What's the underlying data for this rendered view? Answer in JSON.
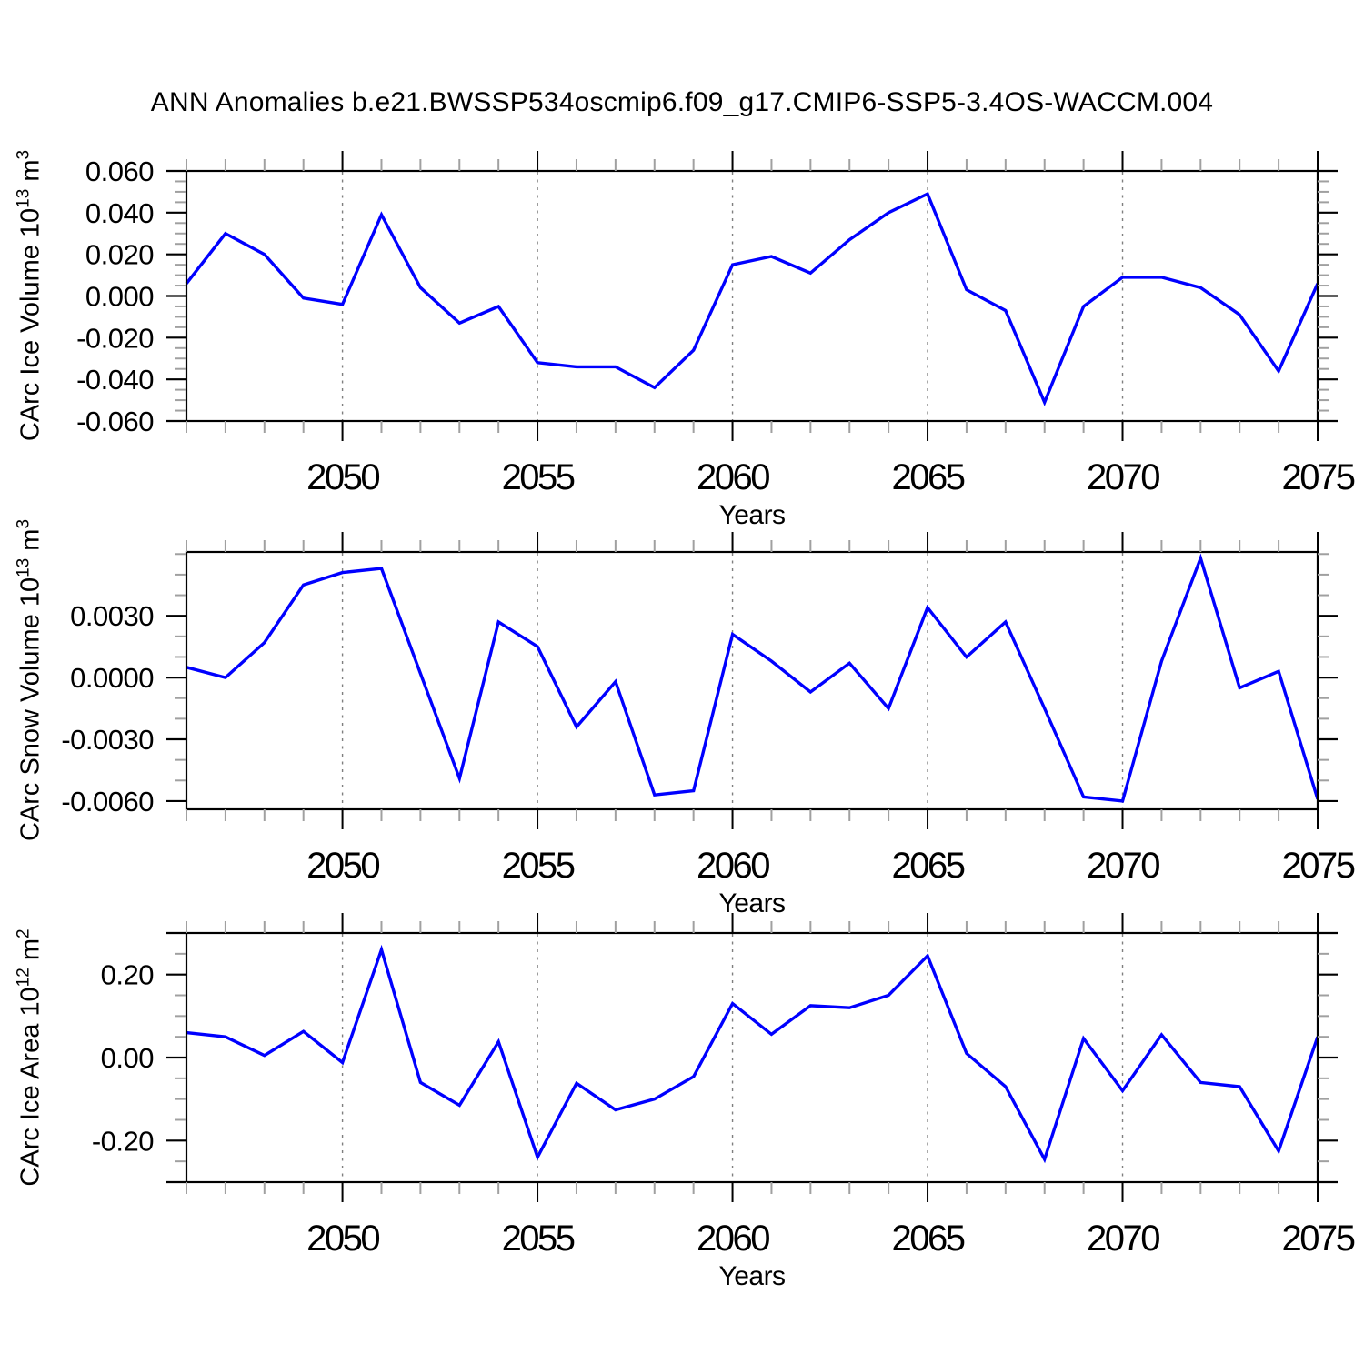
{
  "title": "ANN Anomalies b.e21.BWSSP534oscmip6.f09_g17.CMIP6-SSP5-3.4OS-WACCM.004",
  "chart_data": {
    "type": "line",
    "title": "ANN Anomalies b.e21.BWSSP534oscmip6.f09_g17.CMIP6-SSP5-3.4OS-WACCM.004",
    "x": [
      2046,
      2047,
      2048,
      2049,
      2050,
      2051,
      2052,
      2053,
      2054,
      2055,
      2056,
      2057,
      2058,
      2059,
      2060,
      2061,
      2062,
      2063,
      2064,
      2065,
      2066,
      2067,
      2068,
      2069,
      2070,
      2071,
      2072,
      2073,
      2074,
      2075
    ],
    "xlabel": "Years",
    "xlim": [
      2046,
      2075
    ],
    "x_major_ticks": [
      2050,
      2055,
      2060,
      2065,
      2070,
      2075
    ],
    "x_tick_labels": [
      "2050",
      "2055",
      "2060",
      "2065",
      "2070",
      "2075"
    ],
    "x_grid_years": [
      2050,
      2055,
      2060,
      2065,
      2070
    ],
    "line_color": "#0000ff",
    "grid_color": "#7f7f7f",
    "minor_tick_color": "#a0a0a0",
    "legend": "none",
    "grid": "vertical-dashed",
    "charts": [
      {
        "name": "ice-volume",
        "ylabel": "CArc Ice Volume 10^13 m^3",
        "ylabel_parts": {
          "text": "CArc Ice Volume 10",
          "sup": "13",
          "unit": " m",
          "unit_sup": "3"
        },
        "xlabel": "Years",
        "ylim": [
          -0.06,
          0.06
        ],
        "ytick_values": [
          0.06,
          0.04,
          0.02,
          0.0,
          -0.02,
          -0.04,
          -0.06
        ],
        "ytick_labels": [
          "0.060",
          "0.040",
          "0.020",
          "0.000",
          "-0.020",
          "-0.040",
          "-0.060"
        ],
        "minor_step": 0.005,
        "edge_ticks": [],
        "values": [
          0.006,
          0.03,
          0.02,
          -0.001,
          -0.004,
          0.039,
          0.004,
          -0.013,
          -0.005,
          -0.032,
          -0.034,
          -0.034,
          -0.044,
          -0.026,
          0.015,
          0.019,
          0.011,
          0.027,
          0.04,
          0.049,
          0.003,
          -0.007,
          -0.051,
          -0.005,
          0.009,
          0.009,
          0.004,
          -0.009,
          -0.036,
          0.006
        ]
      },
      {
        "name": "snow-volume",
        "ylabel": "CArc Snow Volume 10^13 m^3",
        "ylabel_parts": {
          "text": "CArc Snow Volume 10",
          "sup": "13",
          "unit": " m",
          "unit_sup": "3"
        },
        "xlabel": "Years",
        "ylim": [
          -0.0064,
          0.0061
        ],
        "ytick_values": [
          0.003,
          0.0,
          -0.003,
          -0.006
        ],
        "ytick_labels": [
          "0.0030",
          "0.0000",
          "-0.0030",
          "-0.0060"
        ],
        "minor_step": 0.001,
        "edge_ticks": [],
        "values": [
          0.0005,
          0.0,
          0.0017,
          0.0045,
          0.0051,
          0.0053,
          0.0002,
          -0.0049,
          0.0027,
          0.0015,
          -0.0024,
          -0.0002,
          -0.0057,
          -0.0055,
          0.0021,
          0.0008,
          -0.0007,
          0.0007,
          -0.0015,
          0.0034,
          0.001,
          0.0027,
          -0.0015,
          -0.0058,
          -0.006,
          0.0008,
          0.0058,
          -0.0005,
          0.0003,
          -0.0059
        ]
      },
      {
        "name": "ice-area",
        "ylabel": "CArc Ice Area 10^12 m^2",
        "ylabel_parts": {
          "text": "CArc Ice Area 10",
          "sup": "12",
          "unit": " m",
          "unit_sup": "2"
        },
        "xlabel": "Years",
        "ylim": [
          -0.3,
          0.3
        ],
        "ytick_values": [
          0.2,
          0.0,
          -0.2
        ],
        "ytick_labels": [
          "0.20",
          "0.00",
          "-0.20"
        ],
        "minor_step": 0.05,
        "edge_ticks": [
          0.3,
          -0.3
        ],
        "values": [
          0.06,
          0.05,
          0.005,
          0.063,
          -0.012,
          0.26,
          -0.06,
          -0.115,
          0.038,
          -0.24,
          -0.062,
          -0.126,
          -0.1,
          -0.046,
          0.13,
          0.056,
          0.125,
          0.12,
          0.15,
          0.245,
          0.01,
          -0.07,
          -0.245,
          0.046,
          -0.08,
          0.055,
          -0.06,
          -0.07,
          -0.225,
          0.05
        ]
      }
    ]
  }
}
